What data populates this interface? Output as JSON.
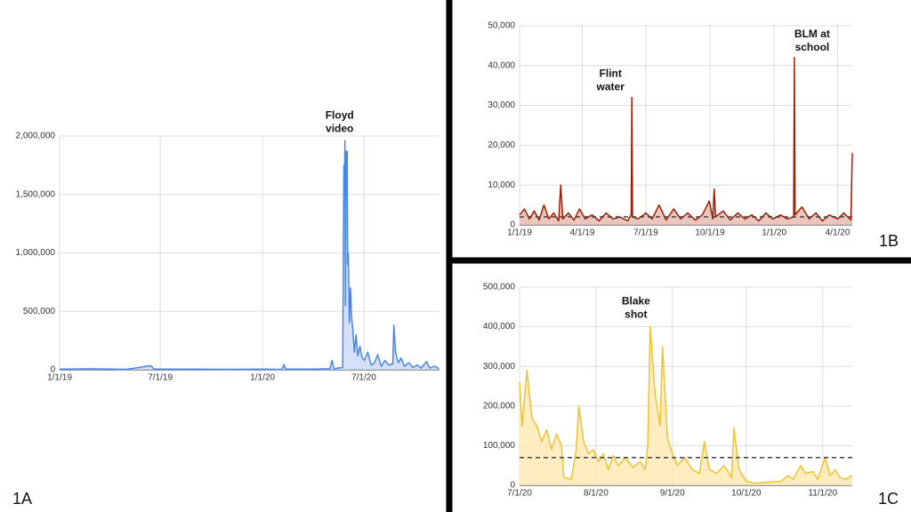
{
  "chart_data": [
    {
      "type": "area",
      "label": "1A",
      "annotation": "Floyd video",
      "color": "#4a86e8",
      "fill": "#c9daf8",
      "grid": true,
      "xlim": [
        "1/1/19",
        "11/14/20"
      ],
      "xticks": [
        "1/1/19",
        "7/1/19",
        "1/1/20",
        "7/1/20"
      ],
      "ylim": [
        0,
        2000000
      ],
      "yticks": [
        0,
        {
          "value": 500000,
          "label": "500,000"
        },
        {
          "value": 1000000,
          "label": "1,000,000"
        },
        {
          "value": 1500000,
          "label": "1,500,000"
        },
        {
          "value": 2000000,
          "label": "2,000,000"
        }
      ],
      "x": [
        "1/1/19",
        "3/1/19",
        "5/1/19",
        "6/14/19",
        "6/20/19",
        "9/1/19",
        "11/1/19",
        "1/1/20",
        "2/5/20",
        "2/8/20",
        "2/12/20",
        "4/1/20",
        "5/1/20",
        "5/5/20",
        "5/8/20",
        "5/24/20",
        "5/26/20",
        "5/27/20",
        "5/28/20",
        "5/29/20",
        "5/30/20",
        "5/31/20",
        "6/1/20",
        "6/2/20",
        "6/3/20",
        "6/5/20",
        "6/7/20",
        "6/9/20",
        "6/11/20",
        "6/14/20",
        "6/17/20",
        "6/20/20",
        "6/24/20",
        "6/28/20",
        "7/2/20",
        "7/8/20",
        "7/14/20",
        "7/20/20",
        "7/26/20",
        "8/1/20",
        "8/8/20",
        "8/15/20",
        "8/22/20",
        "8/24/20",
        "8/27/20",
        "9/1/20",
        "9/6/20",
        "9/12/20",
        "9/20/20",
        "9/27/20",
        "10/5/20",
        "10/12/20",
        "10/22/20",
        "10/27/20",
        "11/5/20",
        "11/13/20"
      ],
      "values": [
        5000,
        8000,
        4000,
        35000,
        5000,
        6000,
        4000,
        5000,
        3000,
        45000,
        5000,
        5000,
        10000,
        80000,
        10000,
        20000,
        1750000,
        1500000,
        1960000,
        550000,
        1870000,
        1500000,
        1870000,
        900000,
        1000000,
        400000,
        700000,
        450000,
        350000,
        150000,
        300000,
        120000,
        200000,
        100000,
        80000,
        150000,
        40000,
        60000,
        130000,
        30000,
        80000,
        40000,
        50000,
        380000,
        150000,
        60000,
        100000,
        30000,
        60000,
        20000,
        40000,
        15000,
        70000,
        15000,
        30000,
        10000
      ]
    },
    {
      "type": "area",
      "label": "1B",
      "annotation": "Flint water",
      "annotation2": "BLM at school",
      "color": "#a61c00",
      "fill": "#e6b8af",
      "grid": true,
      "reference_line": 2000,
      "xlim": [
        "1/1/19",
        "4/22/20"
      ],
      "xticks": [
        "1/1/19",
        "4/1/19",
        "7/1/19",
        "10/1/19",
        "1/1/20",
        "4/1/20"
      ],
      "ylim": [
        0,
        50000
      ],
      "yticks": [
        0,
        {
          "value": 10000,
          "label": "10,000"
        },
        {
          "value": 20000,
          "label": "20,000"
        },
        {
          "value": 30000,
          "label": "30,000"
        },
        {
          "value": 40000,
          "label": "40,000"
        },
        {
          "value": 50000,
          "label": "50,000"
        }
      ],
      "x": [
        "1/1/19",
        "1/8/19",
        "1/15/19",
        "1/22/19",
        "1/29/19",
        "2/5/19",
        "2/12/19",
        "2/19/19",
        "2/26/19",
        "3/1/19",
        "3/4/19",
        "3/12/19",
        "3/20/19",
        "3/28/19",
        "4/5/19",
        "4/15/19",
        "4/25/19",
        "5/5/19",
        "5/15/19",
        "5/25/19",
        "6/5/19",
        "6/10/19",
        "6/11/19",
        "6/12/19",
        "6/20/19",
        "7/1/19",
        "7/10/19",
        "7/20/19",
        "7/30/19",
        "8/10/19",
        "8/20/19",
        "8/30/19",
        "9/10/19",
        "9/20/19",
        "9/30/19",
        "10/5/19",
        "10/7/19",
        "10/9/19",
        "10/20/19",
        "10/30/19",
        "11/10/19",
        "11/20/19",
        "11/30/19",
        "12/10/19",
        "12/20/19",
        "12/30/19",
        "1/10/20",
        "1/20/20",
        "1/29/20",
        "1/30/20",
        "1/31/20",
        "2/10/20",
        "2/20/20",
        "3/1/20",
        "3/10/20",
        "3/20/20",
        "4/1/20",
        "4/10/20",
        "4/20/20",
        "4/22/20"
      ],
      "values": [
        2500,
        4000,
        1500,
        3500,
        1200,
        5000,
        1500,
        3000,
        1000,
        10000,
        1500,
        3000,
        1200,
        4000,
        1500,
        2500,
        1000,
        3000,
        1500,
        2000,
        1000,
        2500,
        32000,
        2000,
        1500,
        3000,
        1500,
        5000,
        1200,
        4000,
        1500,
        3000,
        1200,
        2500,
        6000,
        1500,
        9000,
        2000,
        3500,
        1200,
        3000,
        1500,
        2500,
        1000,
        3000,
        1500,
        2500,
        1500,
        2000,
        42000,
        2500,
        4500,
        1500,
        3000,
        1000,
        2500,
        1500,
        3000,
        1200,
        18000
      ]
    },
    {
      "type": "area",
      "label": "1C",
      "annotation": "Blake shot",
      "color": "#f1c232",
      "fill": "#fce8b2",
      "grid": true,
      "reference_line": 70000,
      "xlim": [
        "7/1/20",
        "11/13/20"
      ],
      "xticks": [
        "7/1/20",
        "8/1/20",
        "9/1/20",
        "10/1/20",
        "11/1/20"
      ],
      "ylim": [
        0,
        500000
      ],
      "yticks": [
        0,
        {
          "value": 100000,
          "label": "100,000"
        },
        {
          "value": 200000,
          "label": "200,000"
        },
        {
          "value": 300000,
          "label": "300,000"
        },
        {
          "value": 400000,
          "label": "400,000"
        },
        {
          "value": 500000,
          "label": "500,000"
        }
      ],
      "x": [
        "7/1/20",
        "7/2/20",
        "7/4/20",
        "7/6/20",
        "7/8/20",
        "7/10/20",
        "7/12/20",
        "7/14/20",
        "7/16/20",
        "7/18/20",
        "7/19/20",
        "7/22/20",
        "7/24/20",
        "7/25/20",
        "7/27/20",
        "7/29/20",
        "7/31/20",
        "8/2/20",
        "8/4/20",
        "8/6/20",
        "8/8/20",
        "8/10/20",
        "8/13/20",
        "8/16/20",
        "8/19/20",
        "8/21/20",
        "8/22/20",
        "8/23/20",
        "8/25/20",
        "8/27/20",
        "8/28/20",
        "8/30/20",
        "9/1/20",
        "9/3/20",
        "9/6/20",
        "9/9/20",
        "9/12/20",
        "9/14/20",
        "9/16/20",
        "9/19/20",
        "9/22/20",
        "9/25/20",
        "9/26/20",
        "9/28/20",
        "10/1/20",
        "10/5/20",
        "10/10/20",
        "10/15/20",
        "10/18/20",
        "10/20/20",
        "10/23/20",
        "10/25/20",
        "10/28/20",
        "10/30/20",
        "11/2/20",
        "11/4/20",
        "11/6/20",
        "11/8/20",
        "11/10/20",
        "11/13/20"
      ],
      "values": [
        260000,
        150000,
        290000,
        170000,
        150000,
        110000,
        140000,
        90000,
        130000,
        100000,
        20000,
        15000,
        90000,
        200000,
        110000,
        80000,
        90000,
        60000,
        80000,
        40000,
        75000,
        50000,
        70000,
        45000,
        60000,
        40000,
        100000,
        400000,
        230000,
        150000,
        350000,
        120000,
        80000,
        50000,
        70000,
        40000,
        30000,
        110000,
        40000,
        30000,
        50000,
        20000,
        145000,
        40000,
        10000,
        5000,
        8000,
        10000,
        25000,
        15000,
        50000,
        30000,
        35000,
        15000,
        70000,
        25000,
        40000,
        20000,
        15000,
        25000
      ]
    }
  ]
}
